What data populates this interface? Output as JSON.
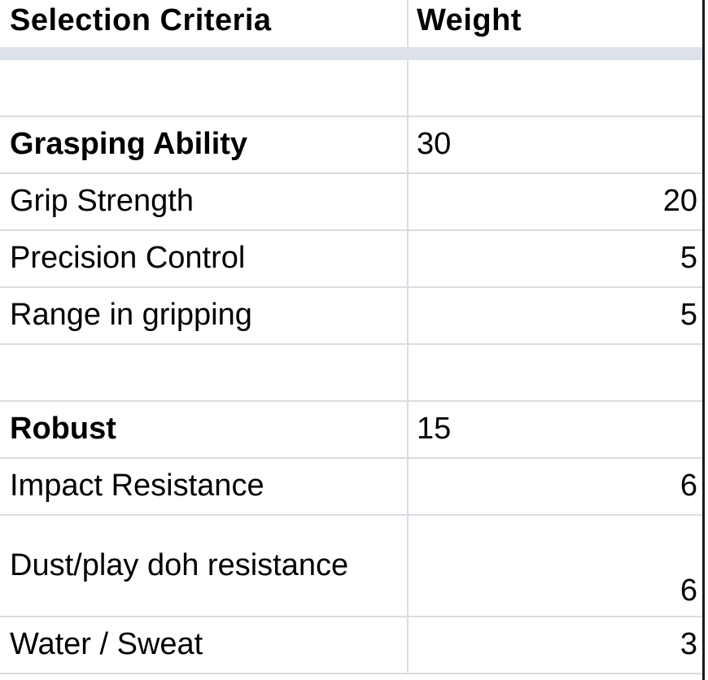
{
  "header": {
    "criteria_label": "Selection Criteria",
    "weight_label": "Weight"
  },
  "rows": [
    {
      "criteria": "",
      "weight": "",
      "type": "blank"
    },
    {
      "criteria": "Grasping Ability",
      "weight": "30",
      "type": "category"
    },
    {
      "criteria": "Grip Strength",
      "weight": "20",
      "type": "item"
    },
    {
      "criteria": "Precision Control",
      "weight": "5",
      "type": "item"
    },
    {
      "criteria": "Range in gripping",
      "weight": "5",
      "type": "item"
    },
    {
      "criteria": "",
      "weight": "",
      "type": "blank"
    },
    {
      "criteria": "Robust",
      "weight": "15",
      "type": "category"
    },
    {
      "criteria": "Impact Resistance",
      "weight": "6",
      "type": "item"
    },
    {
      "criteria": "Dust/play doh resistance",
      "weight": "6",
      "type": "item-tall"
    },
    {
      "criteria": "Water / Sweat",
      "weight": "3",
      "type": "item"
    }
  ]
}
